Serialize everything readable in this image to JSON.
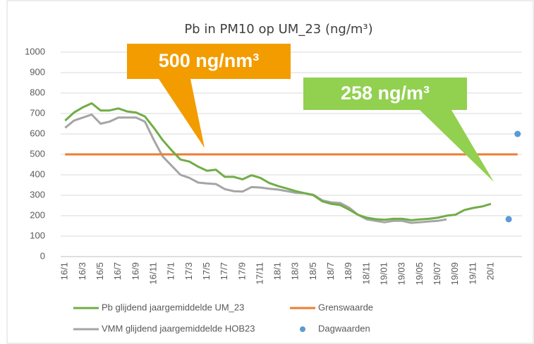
{
  "chart_data": {
    "type": "line",
    "title": "Pb in PM10 op UM_23 (ng/m³)",
    "categories": [
      "16/1",
      null,
      "16/3",
      null,
      "16/5",
      null,
      "16/7",
      null,
      "16/9",
      null,
      "16/11",
      null,
      "17/1",
      null,
      "17/3",
      null,
      "17/5",
      null,
      "17/7",
      null,
      "17/9",
      null,
      "17/11",
      null,
      "18/1",
      null,
      "18/3",
      null,
      "18/5",
      null,
      "18/7",
      null,
      "18/9",
      null,
      "18/11",
      null,
      "19/01",
      null,
      "19/03",
      null,
      "19/05",
      null,
      "19/07",
      null,
      "19/09",
      null,
      "19/11",
      null,
      "20/1",
      null,
      null,
      null
    ],
    "series": [
      {
        "name": "Pb glijdend jaargemiddelde UM_23",
        "color": "#70ad47",
        "type": "line",
        "values": [
          665,
          705,
          730,
          750,
          715,
          715,
          725,
          710,
          705,
          685,
          630,
          570,
          520,
          475,
          465,
          440,
          420,
          425,
          390,
          390,
          378,
          398,
          385,
          360,
          345,
          333,
          320,
          310,
          300,
          270,
          258,
          252,
          230,
          205,
          190,
          183,
          180,
          185,
          185,
          178,
          182,
          185,
          190,
          200,
          205,
          228,
          238,
          245,
          258,
          null,
          null,
          null
        ]
      },
      {
        "name": "Grenswaarde",
        "color": "#ed7d31",
        "type": "line",
        "values": [
          500,
          500,
          500,
          500,
          500,
          500,
          500,
          500,
          500,
          500,
          500,
          500,
          500,
          500,
          500,
          500,
          500,
          500,
          500,
          500,
          500,
          500,
          500,
          500,
          500,
          500,
          500,
          500,
          500,
          500,
          500,
          500,
          500,
          500,
          500,
          500,
          500,
          500,
          500,
          500,
          500,
          500,
          500,
          500,
          500,
          500,
          500,
          500,
          500,
          500,
          500,
          500
        ]
      },
      {
        "name": "VMM glijdend jaargemiddelde HOB23",
        "color": "#a5a5a5",
        "type": "line",
        "values": [
          630,
          665,
          680,
          695,
          650,
          660,
          680,
          680,
          680,
          660,
          570,
          490,
          445,
          400,
          385,
          362,
          358,
          355,
          330,
          320,
          318,
          340,
          338,
          332,
          328,
          320,
          312,
          310,
          302,
          275,
          265,
          262,
          240,
          205,
          182,
          175,
          168,
          175,
          175,
          165,
          168,
          172,
          175,
          182,
          null,
          null,
          null,
          null,
          null,
          null,
          null,
          null
        ]
      },
      {
        "name": "Dagwaarden",
        "color": "#5b9bd5",
        "type": "scatter",
        "values": [
          null,
          null,
          null,
          null,
          null,
          null,
          null,
          null,
          null,
          null,
          null,
          null,
          null,
          null,
          null,
          null,
          null,
          null,
          null,
          null,
          null,
          null,
          null,
          null,
          null,
          null,
          null,
          null,
          null,
          null,
          null,
          null,
          null,
          null,
          null,
          null,
          null,
          null,
          null,
          null,
          null,
          null,
          null,
          null,
          null,
          null,
          null,
          null,
          null,
          null,
          183,
          600
        ]
      }
    ],
    "ylim": [
      0,
      1000
    ],
    "yticks": [
      0,
      100,
      200,
      300,
      400,
      500,
      600,
      700,
      800,
      900,
      1000
    ],
    "grid": true,
    "annotations": [
      {
        "text": "500 ng/nm³",
        "color": "#f39c00"
      },
      {
        "text": "258 ng/m³",
        "color": "#92d050"
      }
    ]
  }
}
